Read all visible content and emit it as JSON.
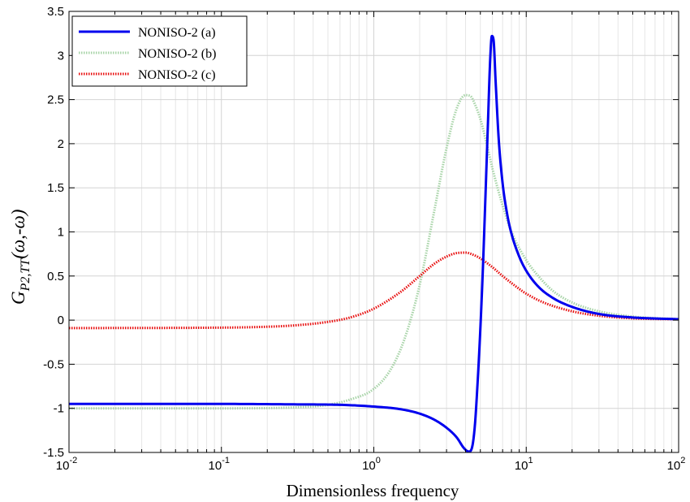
{
  "chart_data": {
    "type": "line",
    "xlabel": "Dimensionless frequency",
    "ylabel": {
      "base": "G",
      "subscript": "P2,TT",
      "args": "(ω,-ω)"
    },
    "x_scale": "log",
    "xlim": [
      0.01,
      100
    ],
    "ylim": [
      -1.5,
      3.5
    ],
    "grid": true,
    "legend_position": "top-left",
    "x_ticks": [
      {
        "value": 0.01,
        "base": "10",
        "exp": "-2"
      },
      {
        "value": 0.1,
        "base": "10",
        "exp": "-1"
      },
      {
        "value": 1,
        "base": "10",
        "exp": "0"
      },
      {
        "value": 10,
        "base": "10",
        "exp": "1"
      },
      {
        "value": 100,
        "base": "10",
        "exp": "2"
      }
    ],
    "y_ticks": [
      {
        "value": 3.5,
        "label": "3.5"
      },
      {
        "value": 3,
        "label": "3"
      },
      {
        "value": 2.5,
        "label": "2.5"
      },
      {
        "value": 2,
        "label": "2"
      },
      {
        "value": 1.5,
        "label": "1.5"
      },
      {
        "value": 1,
        "label": "1"
      },
      {
        "value": 0.5,
        "label": "0.5"
      },
      {
        "value": 0,
        "label": "0"
      },
      {
        "value": -0.5,
        "label": "-0.5"
      },
      {
        "value": -1,
        "label": "-1"
      },
      {
        "value": -1.5,
        "label": "-1.5"
      }
    ],
    "series": [
      {
        "name": "NONISO-2 (a)",
        "color": "#0000ee",
        "style": "solid",
        "x": [
          0.01,
          0.1,
          0.3,
          0.6,
          1.0,
          1.5,
          2.0,
          2.5,
          3.0,
          3.5,
          3.9,
          4.2,
          4.4,
          4.6,
          4.8,
          5.0,
          5.2,
          5.4,
          5.6,
          5.8,
          5.95,
          6.1,
          6.3,
          6.6,
          7.0,
          7.5,
          8.0,
          9.0,
          10.0,
          12.0,
          15.0,
          20.0,
          30.0,
          50.0,
          100.0
        ],
        "y": [
          -0.95,
          -0.95,
          -0.955,
          -0.96,
          -0.98,
          -1.01,
          -1.06,
          -1.13,
          -1.22,
          -1.33,
          -1.45,
          -1.49,
          -1.45,
          -1.2,
          -0.7,
          -0.1,
          0.6,
          1.4,
          2.2,
          2.95,
          3.22,
          3.18,
          2.7,
          2.05,
          1.55,
          1.2,
          0.98,
          0.72,
          0.56,
          0.38,
          0.25,
          0.15,
          0.07,
          0.03,
          0.01
        ]
      },
      {
        "name": "NONISO-2 (b)",
        "color": "#a8d4a8",
        "style": "dotted",
        "x": [
          0.01,
          0.1,
          0.3,
          0.5,
          0.7,
          1.0,
          1.3,
          1.6,
          2.0,
          2.5,
          3.0,
          3.5,
          4.0,
          4.3,
          4.6,
          5.0,
          5.5,
          6.0,
          7.0,
          8.0,
          10.0,
          12.0,
          15.0,
          20.0,
          30.0,
          50.0,
          100.0
        ],
        "y": [
          -1.0,
          -1.0,
          -0.99,
          -0.96,
          -0.9,
          -0.78,
          -0.55,
          -0.2,
          0.4,
          1.25,
          1.95,
          2.4,
          2.55,
          2.54,
          2.45,
          2.28,
          2.0,
          1.72,
          1.3,
          1.0,
          0.68,
          0.5,
          0.33,
          0.2,
          0.1,
          0.04,
          0.01
        ]
      },
      {
        "name": "NONISO-2 (c)",
        "color": "#e81010",
        "style": "dotted",
        "x": [
          0.01,
          0.1,
          0.2,
          0.3,
          0.5,
          0.7,
          1.0,
          1.5,
          2.0,
          2.5,
          3.0,
          3.5,
          4.0,
          4.5,
          5.0,
          6.0,
          7.0,
          8.0,
          10.0,
          13.0,
          20.0,
          30.0,
          50.0,
          100.0
        ],
        "y": [
          -0.09,
          -0.085,
          -0.075,
          -0.06,
          -0.02,
          0.03,
          0.13,
          0.32,
          0.5,
          0.64,
          0.72,
          0.76,
          0.765,
          0.74,
          0.7,
          0.6,
          0.5,
          0.42,
          0.3,
          0.2,
          0.1,
          0.05,
          0.02,
          0.01
        ]
      }
    ]
  }
}
